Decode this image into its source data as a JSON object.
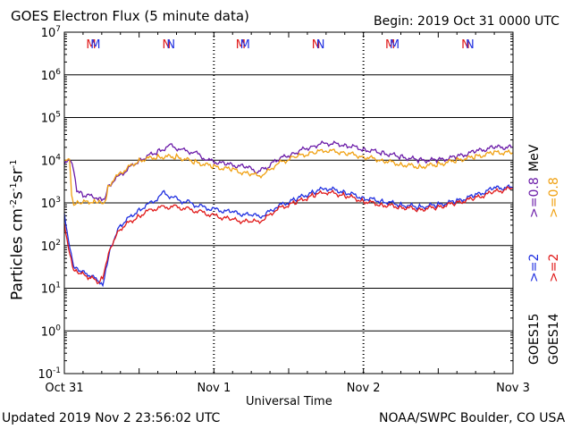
{
  "header": {
    "title": "GOES Electron Flux (5 minute data)",
    "begin": "Begin: 2019 Oct 31 0000 UTC"
  },
  "footer": {
    "updated": "Updated 2019 Nov  2 23:56:02 UTC",
    "source": "NOAA/SWPC Boulder, CO USA"
  },
  "legend": {
    "goes15": "GOES15",
    "goes14": "GOES14",
    "g15_2mev": ">=2",
    "g14_2mev": ">=2",
    "g15_08mev": ">=0.8",
    "g14_08mev": ">=0.8",
    "mev": "MeV"
  },
  "colors": {
    "goes15_2mev": "#1f2fe0",
    "goes14_2mev": "#e01818",
    "goes15_08mev": "#6a1aa8",
    "goes14_08mev": "#f0a010",
    "threshold": "#000000"
  },
  "chart_data": {
    "type": "line",
    "title": "GOES Electron Flux (5 minute data)",
    "xlabel": "Universal Time",
    "ylabel": "Particles cm-2 s-1 sr-1",
    "y_scale": "log",
    "ylim": [
      0.1,
      10000000
    ],
    "xlim": [
      "2019-10-31 00:00",
      "2019-11-03 00:00"
    ],
    "x_ticks": [
      "Oct 31",
      "Nov 1",
      "Nov 2",
      "Nov 3"
    ],
    "y_ticks": [
      "10^-1",
      "10^0",
      "10^1",
      "10^2",
      "10^3",
      "10^4",
      "10^5",
      "10^6",
      "10^7"
    ],
    "grid": true,
    "threshold": 1000,
    "markers": [
      {
        "x": "2019-10-31 04:18",
        "label": "M",
        "color": "#e01818"
      },
      {
        "x": "2019-10-31 05:00",
        "label": "M",
        "color": "#1f2fe0"
      },
      {
        "x": "2019-10-31 16:24",
        "label": "N",
        "color": "#e01818"
      },
      {
        "x": "2019-10-31 17:06",
        "label": "N",
        "color": "#1f2fe0"
      },
      {
        "x": "2019-11-01 04:18",
        "label": "M",
        "color": "#e01818"
      },
      {
        "x": "2019-11-01 05:00",
        "label": "M",
        "color": "#1f2fe0"
      },
      {
        "x": "2019-11-01 16:24",
        "label": "N",
        "color": "#e01818"
      },
      {
        "x": "2019-11-01 17:06",
        "label": "N",
        "color": "#1f2fe0"
      },
      {
        "x": "2019-11-02 04:18",
        "label": "M",
        "color": "#e01818"
      },
      {
        "x": "2019-11-02 05:00",
        "label": "M",
        "color": "#1f2fe0"
      },
      {
        "x": "2019-11-02 16:24",
        "label": "N",
        "color": "#e01818"
      },
      {
        "x": "2019-11-02 17:06",
        "label": "N",
        "color": "#1f2fe0"
      }
    ],
    "series": [
      {
        "name": "GOES15 >=0.8 MeV",
        "color": "#6a1aa8",
        "points": [
          [
            "2019-10-31 00:00",
            8000
          ],
          [
            "2019-10-31 01:00",
            10000
          ],
          [
            "2019-10-31 01:30",
            6000
          ],
          [
            "2019-10-31 02:00",
            2000
          ],
          [
            "2019-10-31 03:00",
            1500
          ],
          [
            "2019-10-31 05:00",
            1400
          ],
          [
            "2019-10-31 06:00",
            1200
          ],
          [
            "2019-10-31 06:40",
            1500
          ],
          [
            "2019-10-31 07:00",
            2500
          ],
          [
            "2019-10-31 09:00",
            4500
          ],
          [
            "2019-10-31 12:00",
            10000
          ],
          [
            "2019-10-31 15:00",
            16000
          ],
          [
            "2019-10-31 17:00",
            22000
          ],
          [
            "2019-10-31 19:00",
            17000
          ],
          [
            "2019-10-31 21:00",
            15000
          ],
          [
            "2019-10-31 23:00",
            10000
          ],
          [
            "2019-11-01 02:00",
            8000
          ],
          [
            "2019-11-01 05:00",
            7000
          ],
          [
            "2019-11-01 07:00",
            5500
          ],
          [
            "2019-11-01 08:30",
            6500
          ],
          [
            "2019-11-01 10:00",
            10000
          ],
          [
            "2019-11-01 13:00",
            15000
          ],
          [
            "2019-11-01 16:00",
            22000
          ],
          [
            "2019-11-01 18:00",
            25000
          ],
          [
            "2019-11-01 21:00",
            23000
          ],
          [
            "2019-11-02 00:00",
            18000
          ],
          [
            "2019-11-02 03:00",
            15000
          ],
          [
            "2019-11-02 06:00",
            12000
          ],
          [
            "2019-11-02 09:00",
            10000
          ],
          [
            "2019-11-02 12:00",
            10000
          ],
          [
            "2019-11-02 15:00",
            12000
          ],
          [
            "2019-11-02 18:00",
            16000
          ],
          [
            "2019-11-02 21:00",
            20000
          ],
          [
            "2019-11-02 23:55",
            20000
          ]
        ]
      },
      {
        "name": "GOES14 >=0.8 MeV",
        "color": "#f0a010",
        "points": [
          [
            "2019-10-31 00:00",
            9000
          ],
          [
            "2019-10-31 00:50",
            10000
          ],
          [
            "2019-10-31 01:10",
            1500
          ],
          [
            "2019-10-31 01:30",
            900
          ],
          [
            "2019-10-31 02:30",
            1000
          ],
          [
            "2019-10-31 05:00",
            1100
          ],
          [
            "2019-10-31 06:00",
            1000
          ],
          [
            "2019-10-31 06:40",
            1200
          ],
          [
            "2019-10-31 07:00",
            2500
          ],
          [
            "2019-10-31 09:00",
            5000
          ],
          [
            "2019-10-31 12:00",
            10000
          ],
          [
            "2019-10-31 15:00",
            12000
          ],
          [
            "2019-10-31 18:00",
            12000
          ],
          [
            "2019-10-31 21:00",
            9000
          ],
          [
            "2019-11-01 00:00",
            7000
          ],
          [
            "2019-11-01 03:00",
            6000
          ],
          [
            "2019-11-01 06:00",
            4500
          ],
          [
            "2019-11-01 08:00",
            4500
          ],
          [
            "2019-11-01 10:00",
            8000
          ],
          [
            "2019-11-01 13:00",
            12000
          ],
          [
            "2019-11-01 16:00",
            15000
          ],
          [
            "2019-11-01 18:00",
            17000
          ],
          [
            "2019-11-01 21:00",
            15000
          ],
          [
            "2019-11-02 00:00",
            12000
          ],
          [
            "2019-11-02 03:00",
            10000
          ],
          [
            "2019-11-02 06:00",
            8000
          ],
          [
            "2019-11-02 09:00",
            7000
          ],
          [
            "2019-11-02 12:00",
            8000
          ],
          [
            "2019-11-02 15:00",
            10000
          ],
          [
            "2019-11-02 18:00",
            12000
          ],
          [
            "2019-11-02 21:00",
            15000
          ],
          [
            "2019-11-02 23:55",
            15000
          ]
        ]
      },
      {
        "name": "GOES15 >=2 MeV",
        "color": "#1f2fe0",
        "points": [
          [
            "2019-10-31 00:00",
            500
          ],
          [
            "2019-10-31 00:40",
            120
          ],
          [
            "2019-10-31 01:30",
            30
          ],
          [
            "2019-10-31 02:30",
            25
          ],
          [
            "2019-10-31 04:00",
            20
          ],
          [
            "2019-10-31 05:30",
            15
          ],
          [
            "2019-10-31 06:10",
            12
          ],
          [
            "2019-10-31 06:40",
            30
          ],
          [
            "2019-10-31 07:30",
            100
          ],
          [
            "2019-10-31 09:00",
            300
          ],
          [
            "2019-10-31 12:00",
            700
          ],
          [
            "2019-10-31 14:00",
            1000
          ],
          [
            "2019-10-31 16:00",
            1700
          ],
          [
            "2019-10-31 18:00",
            1200
          ],
          [
            "2019-10-31 20:00",
            1000
          ],
          [
            "2019-10-31 22:00",
            800
          ],
          [
            "2019-11-01 00:00",
            700
          ],
          [
            "2019-11-01 03:00",
            600
          ],
          [
            "2019-11-01 06:00",
            500
          ],
          [
            "2019-11-01 08:00",
            500
          ],
          [
            "2019-11-01 10:00",
            800
          ],
          [
            "2019-11-01 13:00",
            1200
          ],
          [
            "2019-11-01 16:00",
            1800
          ],
          [
            "2019-11-01 18:00",
            2200
          ],
          [
            "2019-11-01 21:00",
            1800
          ],
          [
            "2019-11-02 00:00",
            1300
          ],
          [
            "2019-11-02 03:00",
            1100
          ],
          [
            "2019-11-02 06:00",
            900
          ],
          [
            "2019-11-02 09:00",
            800
          ],
          [
            "2019-11-02 12:00",
            900
          ],
          [
            "2019-11-02 15:00",
            1100
          ],
          [
            "2019-11-02 18:00",
            1500
          ],
          [
            "2019-11-02 21:00",
            2200
          ],
          [
            "2019-11-02 23:55",
            2300
          ]
        ]
      },
      {
        "name": "GOES14 >=2 MeV",
        "color": "#e01818",
        "points": [
          [
            "2019-10-31 00:00",
            300
          ],
          [
            "2019-10-31 00:40",
            80
          ],
          [
            "2019-10-31 01:30",
            25
          ],
          [
            "2019-10-31 02:30",
            22
          ],
          [
            "2019-10-31 04:00",
            18
          ],
          [
            "2019-10-31 05:30",
            14
          ],
          [
            "2019-10-31 06:10",
            18
          ],
          [
            "2019-10-31 06:40",
            40
          ],
          [
            "2019-10-31 07:30",
            100
          ],
          [
            "2019-10-31 09:00",
            250
          ],
          [
            "2019-10-31 12:00",
            500
          ],
          [
            "2019-10-31 14:00",
            700
          ],
          [
            "2019-10-31 16:00",
            800
          ],
          [
            "2019-10-31 18:00",
            800
          ],
          [
            "2019-10-31 20:00",
            700
          ],
          [
            "2019-10-31 22:00",
            600
          ],
          [
            "2019-11-01 00:00",
            500
          ],
          [
            "2019-11-01 03:00",
            400
          ],
          [
            "2019-11-01 06:00",
            350
          ],
          [
            "2019-11-01 08:00",
            400
          ],
          [
            "2019-11-01 10:00",
            700
          ],
          [
            "2019-11-01 13:00",
            1000
          ],
          [
            "2019-11-01 16:00",
            1500
          ],
          [
            "2019-11-01 18:00",
            1800
          ],
          [
            "2019-11-01 21:00",
            1500
          ],
          [
            "2019-11-02 00:00",
            1100
          ],
          [
            "2019-11-02 03:00",
            900
          ],
          [
            "2019-11-02 06:00",
            800
          ],
          [
            "2019-11-02 09:00",
            700
          ],
          [
            "2019-11-02 12:00",
            800
          ],
          [
            "2019-11-02 15:00",
            1000
          ],
          [
            "2019-11-02 18:00",
            1300
          ],
          [
            "2019-11-02 21:00",
            1800
          ],
          [
            "2019-11-02 23:55",
            2200
          ]
        ]
      }
    ]
  }
}
